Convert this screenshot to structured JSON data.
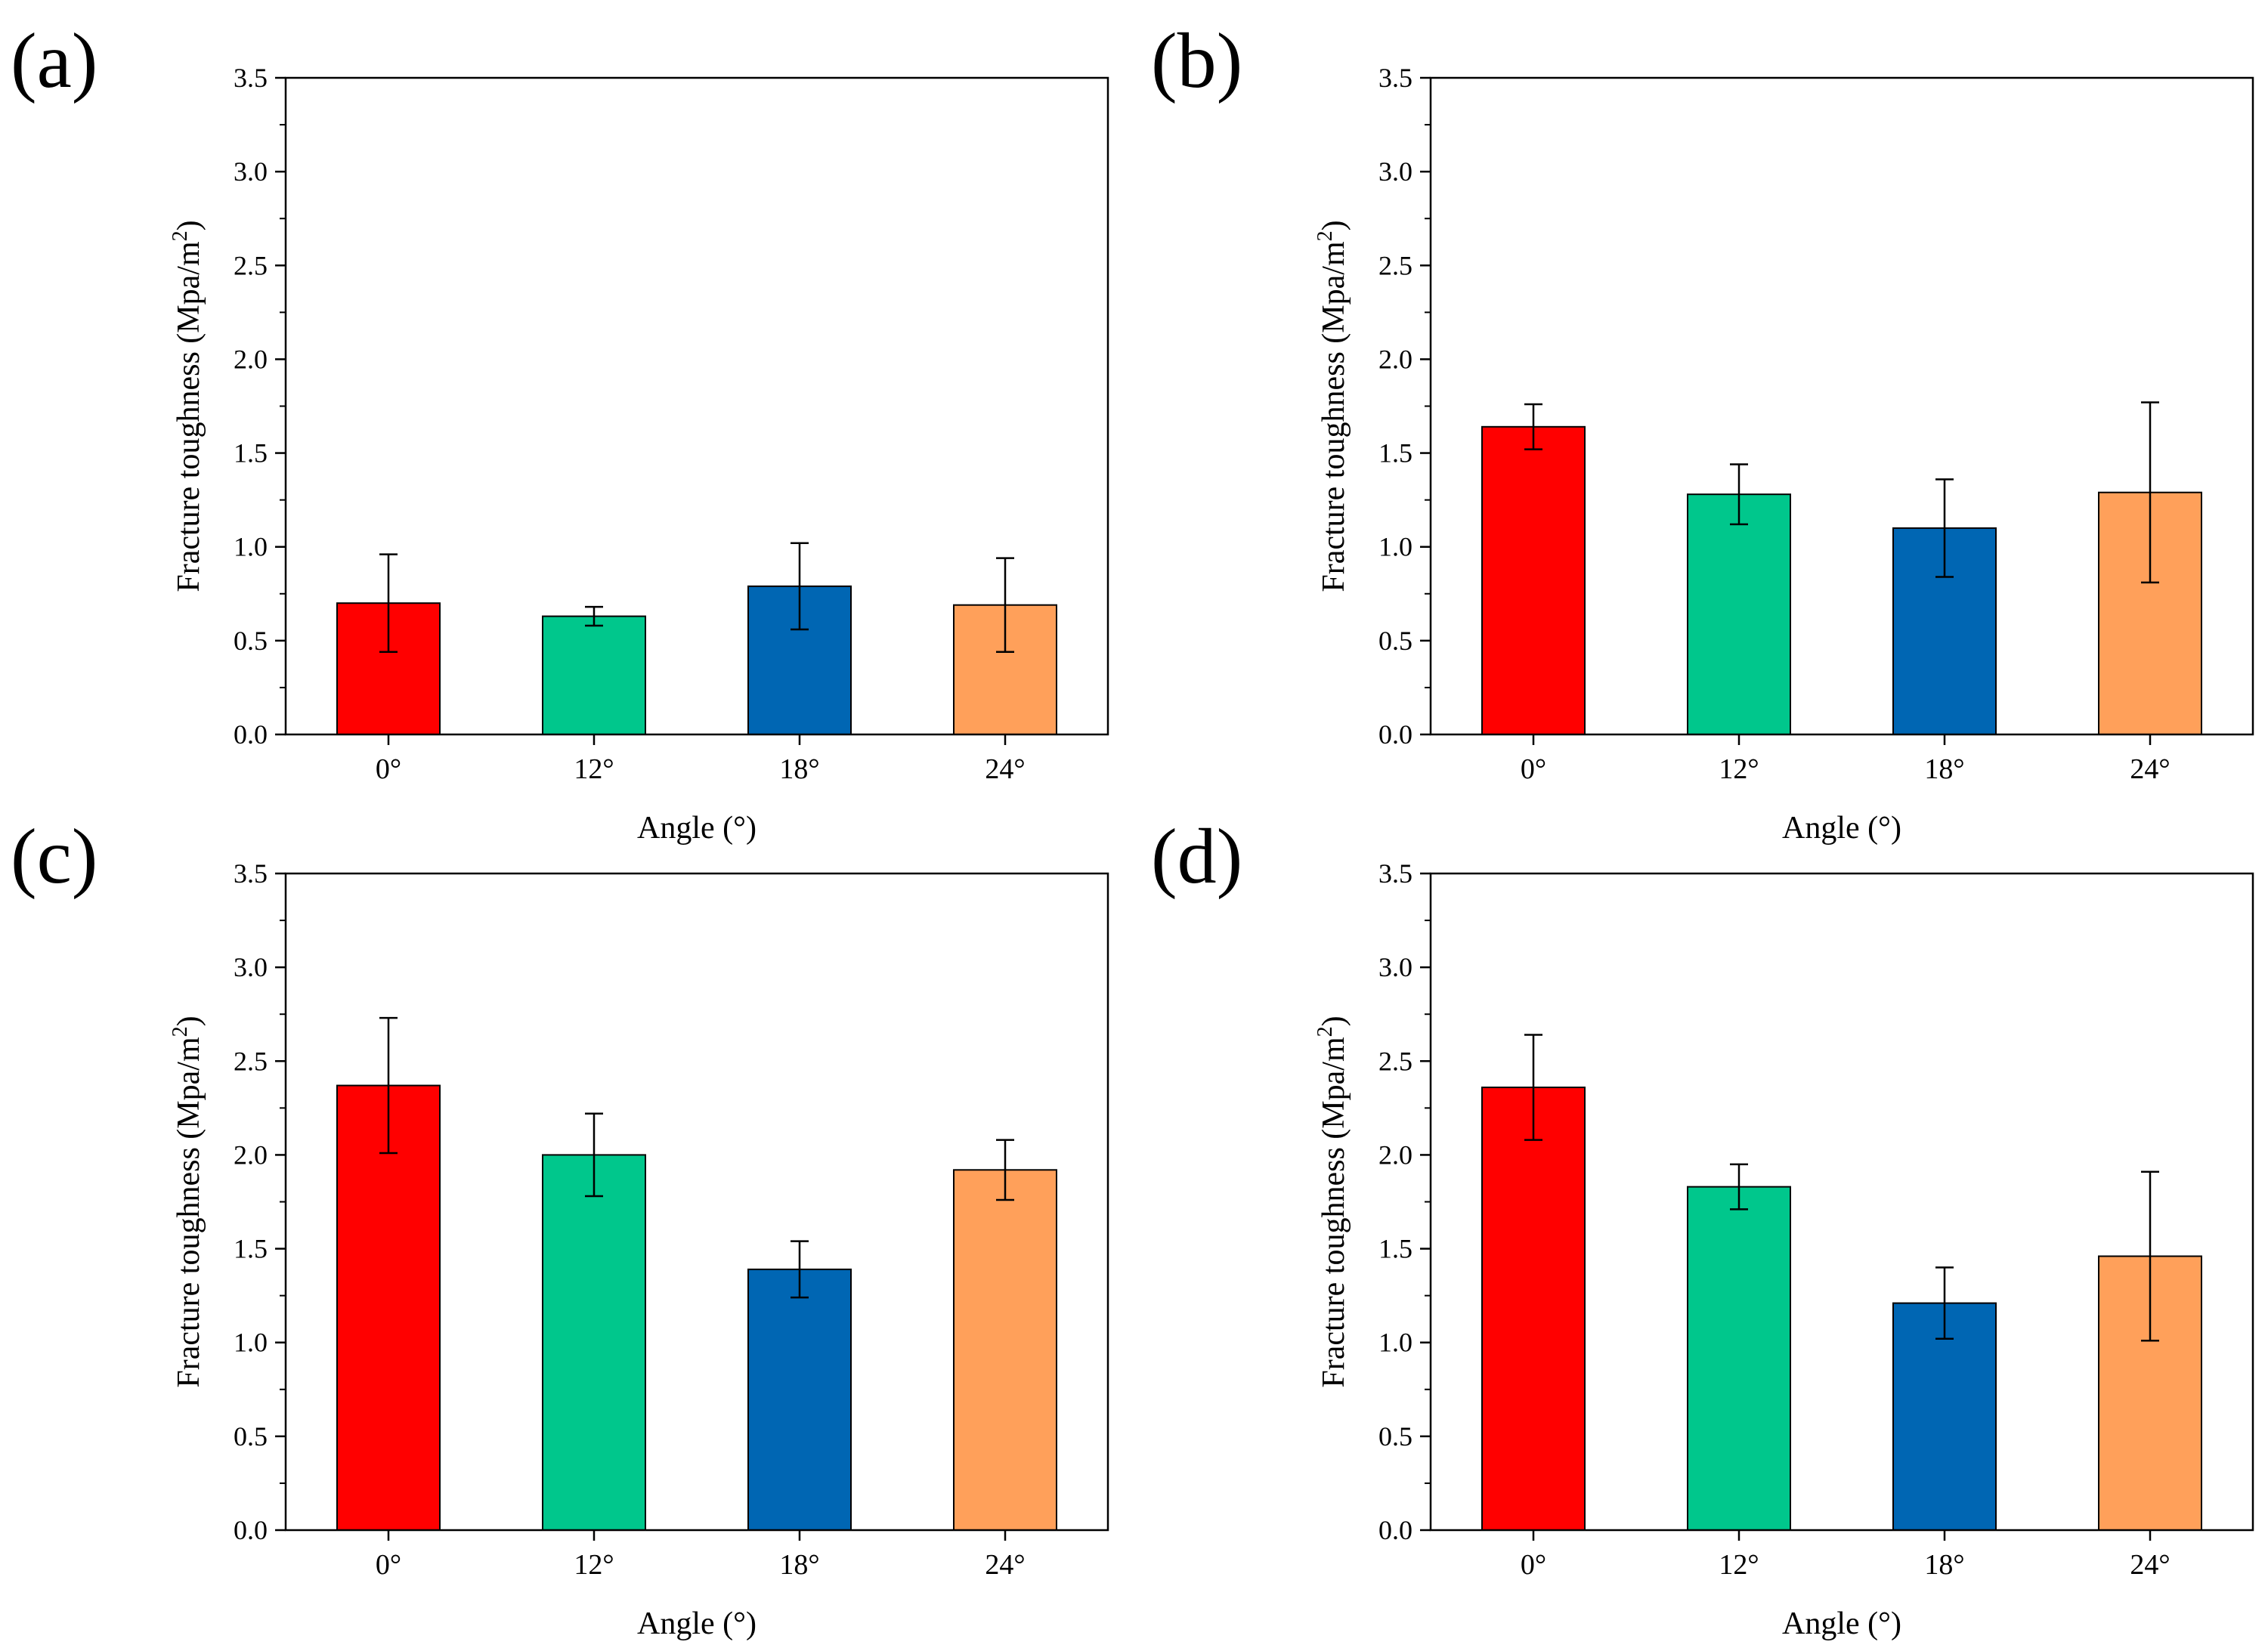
{
  "colors": {
    "bar": [
      "#ff0000",
      "#00c78c",
      "#0066b3",
      "#ffa05a"
    ],
    "axis": "#000000"
  },
  "chart_data": [
    {
      "panel": "(a)",
      "type": "bar",
      "categories": [
        "0°",
        "12°",
        "18°",
        "24°"
      ],
      "values": [
        0.7,
        0.63,
        0.79,
        0.69
      ],
      "errors": [
        0.26,
        0.05,
        0.23,
        0.25
      ],
      "xlabel": "Angle (°)",
      "ylabel_main": "Fracture toughness (Mpa/m",
      "ylabel_sup": "2",
      "ylabel_end": ")",
      "ylim": [
        0,
        3.5
      ],
      "yticks": [
        "0.0",
        "0.5",
        "1.0",
        "1.5",
        "2.0",
        "2.5",
        "3.0",
        "3.5"
      ]
    },
    {
      "panel": "(b)",
      "type": "bar",
      "categories": [
        "0°",
        "12°",
        "18°",
        "24°"
      ],
      "values": [
        1.64,
        1.28,
        1.1,
        1.29
      ],
      "errors": [
        0.12,
        0.16,
        0.26,
        0.48
      ],
      "xlabel": "Angle (°)",
      "ylabel_main": "Fracture toughness (Mpa/m",
      "ylabel_sup": "2",
      "ylabel_end": ")",
      "ylim": [
        0,
        3.5
      ],
      "yticks": [
        "0.0",
        "0.5",
        "1.0",
        "1.5",
        "2.0",
        "2.5",
        "3.0",
        "3.5"
      ]
    },
    {
      "panel": "(c)",
      "type": "bar",
      "categories": [
        "0°",
        "12°",
        "18°",
        "24°"
      ],
      "values": [
        2.37,
        2.0,
        1.39,
        1.92
      ],
      "errors": [
        0.36,
        0.22,
        0.15,
        0.16
      ],
      "xlabel": "Angle (°)",
      "ylabel_main": "Fracture toughness (Mpa/m",
      "ylabel_sup": "2",
      "ylabel_end": ")",
      "ylim": [
        0,
        3.5
      ],
      "yticks": [
        "0.0",
        "0.5",
        "1.0",
        "1.5",
        "2.0",
        "2.5",
        "3.0",
        "3.5"
      ]
    },
    {
      "panel": "(d)",
      "type": "bar",
      "categories": [
        "0°",
        "12°",
        "18°",
        "24°"
      ],
      "values": [
        2.36,
        1.83,
        1.21,
        1.46
      ],
      "errors": [
        0.28,
        0.12,
        0.19,
        0.45
      ],
      "xlabel": "Angle (°)",
      "ylabel_main": "Fracture toughness (Mpa/m",
      "ylabel_sup": "2",
      "ylabel_end": ")",
      "ylim": [
        0,
        3.5
      ],
      "yticks": [
        "0.0",
        "0.5",
        "1.0",
        "1.5",
        "2.0",
        "2.5",
        "3.0",
        "3.5"
      ]
    }
  ]
}
